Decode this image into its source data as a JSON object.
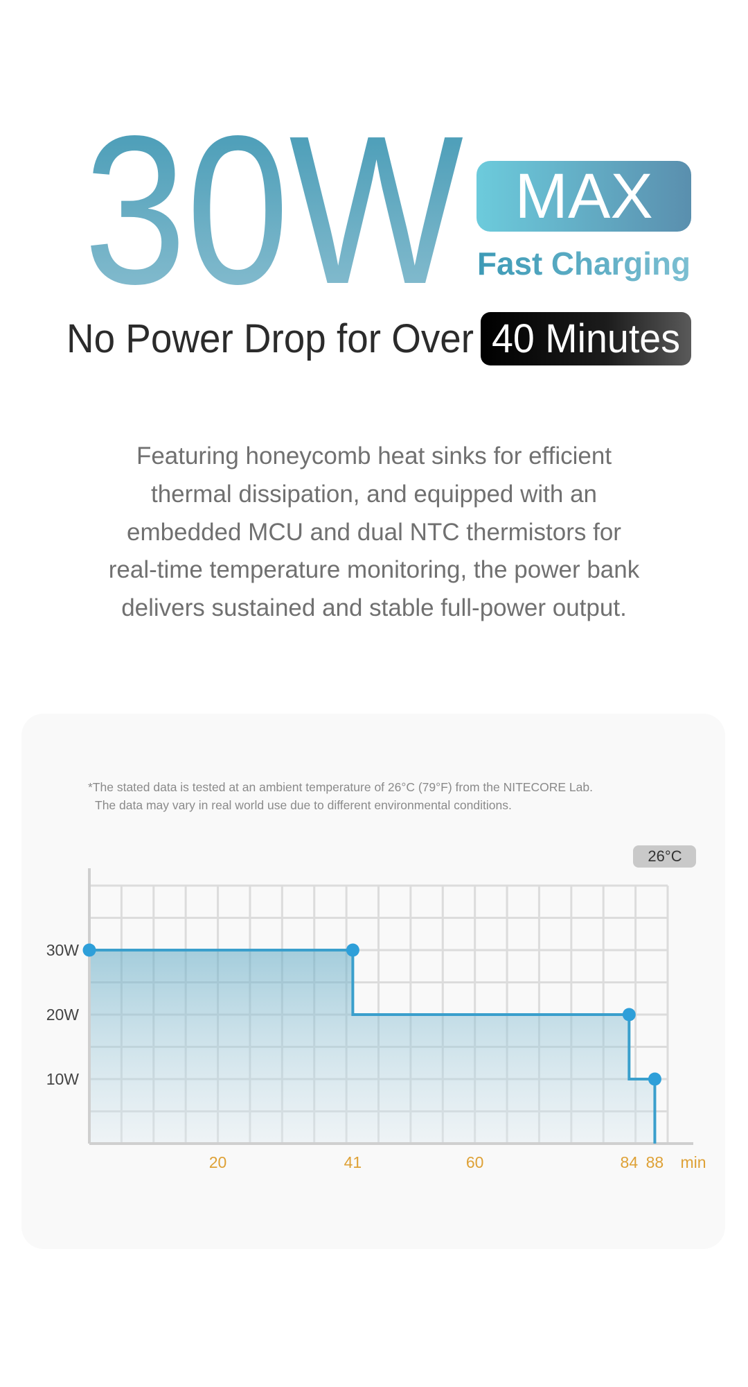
{
  "header": {
    "title": "30W",
    "badge": "MAX",
    "subtitle": "Fast Charging",
    "headline": "No Power Drop for Over",
    "highlight": "40 Minutes"
  },
  "description": [
    "Featuring honeycomb heat sinks for efficient",
    "thermal dissipation, and equipped with an",
    "embedded MCU and dual NTC thermistors for",
    "real-time temperature monitoring, the power bank",
    "delivers sustained and stable full-power output."
  ],
  "chart_data": {
    "type": "line",
    "step": "pre",
    "notes": [
      "*The stated data is tested at an ambient temperature of 26°C (79°F) from the NITECORE Lab.",
      "The data may vary in real world use due to different environmental conditions."
    ],
    "badge": "26°C",
    "x_label": "min",
    "xlim": [
      0,
      90
    ],
    "ylim": [
      0,
      40
    ],
    "xticks": [
      20,
      41,
      60,
      84,
      88
    ],
    "yticks": [
      {
        "value": 10,
        "label": "10W"
      },
      {
        "value": 20,
        "label": "20W"
      },
      {
        "value": 30,
        "label": "30W"
      }
    ],
    "xgrid": [
      0,
      5,
      10,
      15,
      20,
      25,
      30,
      35,
      40,
      45,
      50,
      55,
      60,
      65,
      70,
      75,
      80,
      85,
      90
    ],
    "ygrid": [
      0,
      5,
      10,
      15,
      20,
      25,
      30,
      35,
      40
    ],
    "grid": true,
    "series": [
      {
        "color": "#3a9fcc",
        "x": [
          0,
          41,
          84,
          88
        ],
        "values": [
          30,
          30,
          20,
          10
        ]
      }
    ]
  }
}
